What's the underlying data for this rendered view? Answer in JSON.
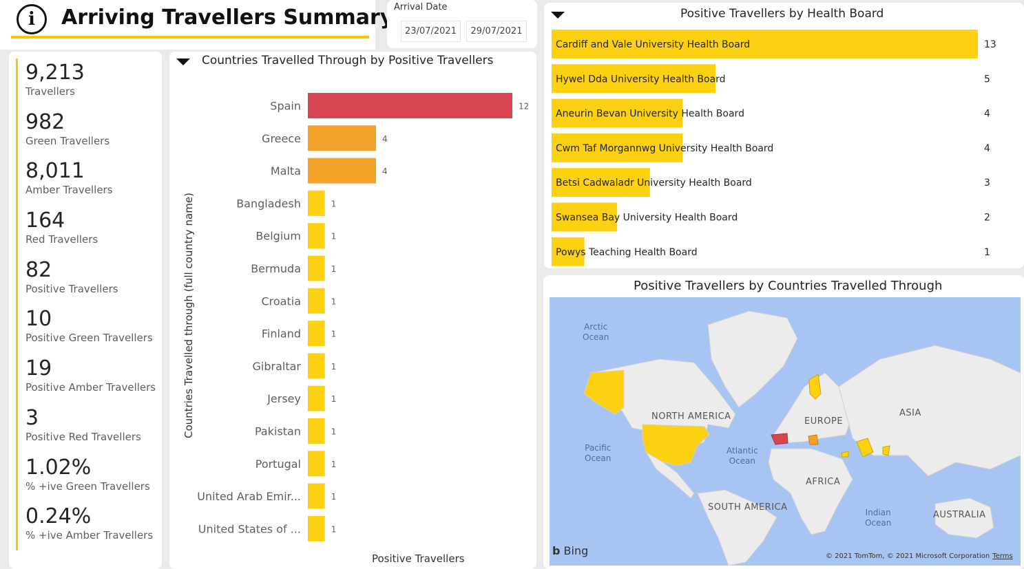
{
  "header": {
    "title": "Arriving Travellers Summary",
    "info_icon": "i"
  },
  "date_slicer": {
    "label": "Arrival Date",
    "from": "23/07/2021",
    "to": "29/07/2021"
  },
  "kpis": [
    {
      "value": "9,213",
      "label": "Travellers"
    },
    {
      "value": "982",
      "label": "Green Travellers"
    },
    {
      "value": "8,011",
      "label": "Amber Travellers"
    },
    {
      "value": "164",
      "label": "Red Travellers"
    },
    {
      "value": "82",
      "label": "Positive Travellers"
    },
    {
      "value": "10",
      "label": "Positive Green Travellers"
    },
    {
      "value": "19",
      "label": "Positive Amber Travellers"
    },
    {
      "value": "3",
      "label": "Positive Red Travellers"
    },
    {
      "value": "1.02%",
      "label": "% +ive Green Travellers"
    },
    {
      "value": "0.24%",
      "label": "% +ive Amber Travellers"
    }
  ],
  "colors": {
    "accent": "#f7c600",
    "bar_red": "#d64550",
    "bar_orange": "#f2a22a",
    "bar_yellow": "#fcd112",
    "map_water": "#a8c4f2",
    "map_land": "#ececec"
  },
  "map": {
    "title": "Positive Travellers by Countries Travelled Through",
    "labels": {
      "arctic": "Arctic\nOcean",
      "north_america": "NORTH AMERICA",
      "europe": "EUROPE",
      "asia": "ASIA",
      "pacific": "Pacific\nOcean",
      "atlantic": "Atlantic\nOcean",
      "africa": "AFRICA",
      "south_america": "SOUTH AMERICA",
      "indian": "Indian\nOcean",
      "australia": "AUSTRALIA"
    },
    "provider": "Bing",
    "copyright": "© 2021 TomTom, © 2021 Microsoft Corporation",
    "terms": "Terms"
  },
  "chart_data": [
    {
      "type": "bar",
      "orientation": "horizontal",
      "title": "Countries Travelled Through by Positive Travellers",
      "xlabel": "Positive Travellers",
      "ylabel": "Countries Travelled through (full country name)",
      "categories": [
        "Spain",
        "Greece",
        "Malta",
        "Bangladesh",
        "Belgium",
        "Bermuda",
        "Croatia",
        "Finland",
        "Gibraltar",
        "Jersey",
        "Pakistan",
        "Portugal",
        "United Arab Emir...",
        "United States of ..."
      ],
      "values": [
        12,
        4,
        4,
        1,
        1,
        1,
        1,
        1,
        1,
        1,
        1,
        1,
        1,
        1
      ],
      "bar_colors": [
        "#d64550",
        "#f2a22a",
        "#f2a22a",
        "#fcd112",
        "#fcd112",
        "#fcd112",
        "#fcd112",
        "#fcd112",
        "#fcd112",
        "#fcd112",
        "#fcd112",
        "#fcd112",
        "#fcd112",
        "#fcd112"
      ],
      "data_labels": true
    },
    {
      "type": "bar",
      "orientation": "horizontal",
      "title": "Positive Travellers by Health Board",
      "categories": [
        "Cardiff and Vale University Health Board",
        "Hywel Dda University Health Board",
        "Aneurin Bevan University Health Board",
        "Cwm Taf Morgannwg University Health Board",
        "Betsi Cadwaladr University Health Board",
        "Swansea Bay University Health Board",
        "Powys Teaching Health Board"
      ],
      "values": [
        13,
        5,
        4,
        4,
        3,
        2,
        1
      ],
      "bar_color": "#fcd112",
      "data_labels": true
    }
  ]
}
